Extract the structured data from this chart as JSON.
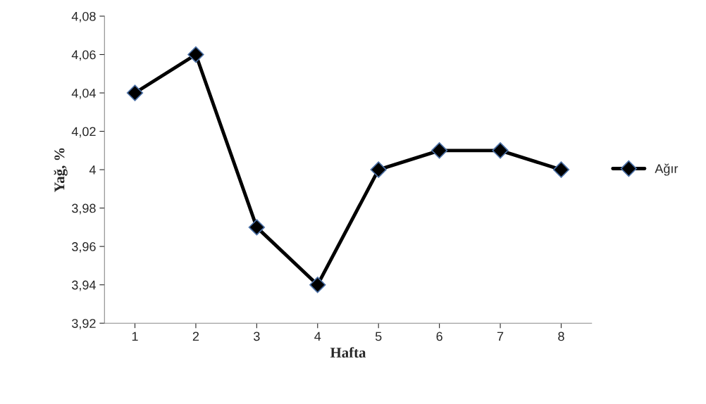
{
  "chart_data": {
    "type": "line",
    "xlabel": "Hafta",
    "ylabel": "Yağ, %",
    "categories": [
      "1",
      "2",
      "3",
      "4",
      "5",
      "6",
      "7",
      "8"
    ],
    "series": [
      {
        "name": "Ağır",
        "color": "#000000",
        "values": [
          4.04,
          4.06,
          3.97,
          3.94,
          4.0,
          4.01,
          4.01,
          4.0
        ]
      }
    ],
    "ylim": [
      3.92,
      4.08
    ],
    "yticks": [
      {
        "value": 3.92,
        "label": "3,92"
      },
      {
        "value": 3.94,
        "label": "3,94"
      },
      {
        "value": 3.96,
        "label": "3,96"
      },
      {
        "value": 3.98,
        "label": "3,98"
      },
      4,
      {
        "value": 4.02,
        "label": "4,02"
      },
      {
        "value": 4.04,
        "label": "4,04"
      },
      {
        "value": 4.06,
        "label": "4,06"
      },
      {
        "value": 4.08,
        "label": "4,08"
      }
    ],
    "grid": false,
    "legend": "right",
    "marker": "diamond",
    "line_style": "solid"
  }
}
